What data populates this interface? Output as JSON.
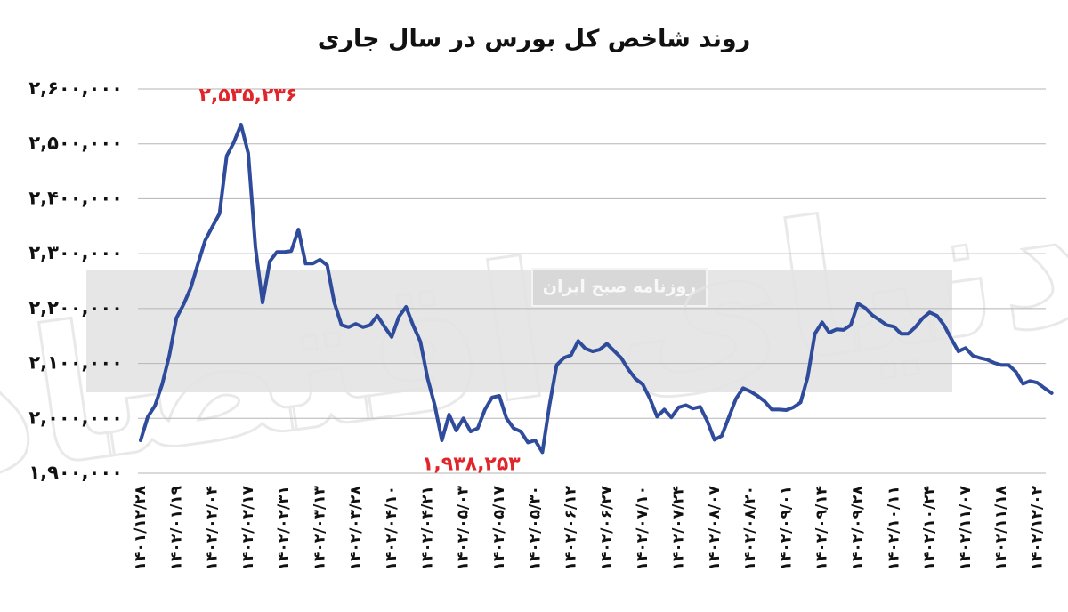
{
  "chart_data": {
    "type": "line",
    "title": "روند شاخص کل بورس در سال جاری",
    "watermarks": [
      "روزنامه صبح ایران",
      "دنیای اقتصاد"
    ],
    "categories": [
      "۱۴۰۱/۱۲/۲۸",
      null,
      null,
      null,
      null,
      "۱۴۰۲/۰۱/۱۹",
      null,
      null,
      null,
      null,
      "۱۴۰۲/۰۲/۰۴",
      null,
      null,
      null,
      null,
      "۱۴۰۲/۰۲/۱۷",
      null,
      null,
      null,
      null,
      "۱۴۰۲/۰۲/۳۱",
      null,
      null,
      null,
      null,
      "۱۴۰۲/۰۳/۱۳",
      null,
      null,
      null,
      null,
      "۱۴۰۲/۰۳/۲۸",
      null,
      null,
      null,
      null,
      "۱۴۰۲/۰۴/۱۰",
      null,
      null,
      null,
      null,
      "۱۴۰۲/۰۴/۲۱",
      null,
      null,
      null,
      null,
      "۱۴۰۲/۰۵/۰۳",
      null,
      null,
      null,
      null,
      "۱۴۰۲/۰۵/۱۷",
      null,
      null,
      null,
      null,
      "۱۴۰۲/۰۵/۳۰",
      null,
      null,
      null,
      null,
      "۱۴۰۲/۰۶/۱۲",
      null,
      null,
      null,
      null,
      "۱۴۰۲/۰۶/۲۷",
      null,
      null,
      null,
      null,
      "۱۴۰۲/۰۷/۱۰",
      null,
      null,
      null,
      null,
      "۱۴۰۲/۰۷/۲۴",
      null,
      null,
      null,
      null,
      "۱۴۰۲/۰۸/۰۷",
      null,
      null,
      null,
      null,
      "۱۴۰۲/۰۸/۲۰",
      null,
      null,
      null,
      null,
      "۱۴۰۲/۰۹/۰۱",
      null,
      null,
      null,
      null,
      "۱۴۰۲/۰۹/۱۴",
      null,
      null,
      null,
      null,
      "۱۴۰۲/۰۹/۲۸",
      null,
      null,
      null,
      null,
      "۱۴۰۲/۱۰/۱۱",
      null,
      null,
      null,
      null,
      "۱۴۰۲/۱۰/۲۴",
      null,
      null,
      null,
      null,
      "۱۴۰۲/۱۱/۰۷",
      null,
      null,
      null,
      null,
      "۱۴۰۲/۱۱/۱۸",
      null,
      null,
      null,
      null,
      "۱۴۰۲/۱۲/۰۲",
      null,
      null
    ],
    "series": [
      {
        "color": "#2f4b9b",
        "values": [
          1960000,
          2003000,
          2023000,
          2062000,
          2114000,
          2183000,
          2208000,
          2238000,
          2282000,
          2324000,
          2349000,
          2373000,
          2478000,
          2503000,
          2535236,
          2483000,
          2312000,
          2211000,
          2286000,
          2303000,
          2303000,
          2305000,
          2344000,
          2282000,
          2282000,
          2289000,
          2279000,
          2211000,
          2170000,
          2166000,
          2172000,
          2166000,
          2170000,
          2187000,
          2167000,
          2148000,
          2185000,
          2203000,
          2169000,
          2140000,
          2073000,
          2024000,
          1960000,
          2007000,
          1978000,
          2000000,
          1976000,
          1982000,
          2016000,
          2038000,
          2041000,
          2000000,
          1982000,
          1976000,
          1956000,
          1960000,
          1938253,
          2024000,
          2097000,
          2110000,
          2115000,
          2141000,
          2127000,
          2122000,
          2125000,
          2136000,
          2123000,
          2110000,
          2089000,
          2072000,
          2062000,
          2036000,
          2003000,
          2016000,
          2002000,
          2020000,
          2024000,
          2018000,
          2021000,
          1995000,
          1961000,
          1968000,
          2002000,
          2036000,
          2055000,
          2049000,
          2041000,
          2031000,
          2016000,
          2016000,
          2015000,
          2020000,
          2029000,
          2076000,
          2154000,
          2175000,
          2156000,
          2162000,
          2161000,
          2170000,
          2209000,
          2201000,
          2188000,
          2179000,
          2170000,
          2167000,
          2154000,
          2154000,
          2166000,
          2182000,
          2193000,
          2187000,
          2170000,
          2145000,
          2122000,
          2128000,
          2114000,
          2110000,
          2107000,
          2101000,
          2097000,
          2097000,
          2085000,
          2063000,
          2068000,
          2065000,
          2055000,
          2046000
        ]
      }
    ],
    "annotations": [
      {
        "value": 2535236,
        "label": "۲,۵۳۵,۲۳۶",
        "color": "#e0262b"
      },
      {
        "value": 1938253,
        "label": "۱,۹۳۸,۲۵۳",
        "color": "#e0262b"
      }
    ],
    "ylim": [
      1900000,
      2600000
    ],
    "yticks": [
      {
        "value": 1900000,
        "label": "۱,۹۰۰,۰۰۰"
      },
      {
        "value": 2000000,
        "label": "۲,۰۰۰,۰۰۰"
      },
      {
        "value": 2100000,
        "label": "۲,۱۰۰,۰۰۰"
      },
      {
        "value": 2200000,
        "label": "۲,۲۰۰,۰۰۰"
      },
      {
        "value": 2300000,
        "label": "۲,۳۰۰,۰۰۰"
      },
      {
        "value": 2400000,
        "label": "۲,۴۰۰,۰۰۰"
      },
      {
        "value": 2500000,
        "label": "۲,۵۰۰,۰۰۰"
      },
      {
        "value": 2600000,
        "label": "۲,۶۰۰,۰۰۰"
      }
    ],
    "grid": true
  }
}
